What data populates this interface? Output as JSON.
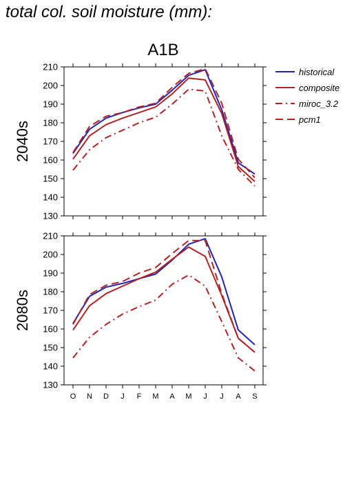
{
  "page": {
    "title": "total col. soil moisture (mm):"
  },
  "chart_data": {
    "type": "line",
    "scenario_title": "A1B",
    "categories": [
      "O",
      "N",
      "D",
      "J",
      "F",
      "M",
      "A",
      "M",
      "J",
      "J",
      "A",
      "S"
    ],
    "ylim": [
      130,
      210
    ],
    "yticks": [
      130,
      140,
      150,
      160,
      170,
      180,
      190,
      200,
      210
    ],
    "legend_position": "right",
    "legend": [
      {
        "name": "historical",
        "color": "#2222bb",
        "dash": "solid"
      },
      {
        "name": "composite",
        "color": "#b22222",
        "dash": "solid"
      },
      {
        "name": "miroc_3.2",
        "color": "#b22222",
        "dash": "dashdot"
      },
      {
        "name": "pcm1",
        "color": "#b22222",
        "dash": "dashed"
      }
    ],
    "panels": [
      {
        "ylabel": "2040s",
        "series": [
          {
            "name": "historical",
            "values": [
              163.5,
              176.5,
              182.5,
              185.5,
              188.0,
              190.0,
              197.5,
              205.5,
              208.5,
              187.0,
              158.5,
              152.5
            ]
          },
          {
            "name": "composite",
            "values": [
              160.5,
              173.0,
              179.0,
              182.5,
              185.5,
              188.5,
              195.5,
              204.0,
              203.0,
              185.0,
              156.5,
              148.5
            ]
          },
          {
            "name": "miroc_3.2",
            "values": [
              154.5,
              165.5,
              172.0,
              176.0,
              180.0,
              183.0,
              190.0,
              198.0,
              197.0,
              173.0,
              155.0,
              146.0
            ]
          },
          {
            "name": "pcm1",
            "values": [
              164.0,
              178.0,
              183.5,
              185.5,
              188.5,
              190.5,
              199.0,
              206.5,
              209.0,
              190.5,
              160.5,
              150.5
            ]
          }
        ]
      },
      {
        "ylabel": "2080s",
        "series": [
          {
            "name": "historical",
            "values": [
              163.0,
              177.5,
              182.5,
              184.5,
              187.0,
              189.5,
              197.0,
              205.5,
              208.5,
              188.0,
              159.5,
              151.5
            ]
          },
          {
            "name": "composite",
            "values": [
              159.5,
              172.5,
              179.0,
              183.0,
              187.0,
              190.5,
              197.5,
              204.0,
              199.0,
              178.0,
              155.0,
              147.5
            ]
          },
          {
            "name": "miroc_3.2",
            "values": [
              144.5,
              155.5,
              162.5,
              168.0,
              172.0,
              175.5,
              184.0,
              189.0,
              183.0,
              164.0,
              144.5,
              137.5
            ]
          },
          {
            "name": "pcm1",
            "values": [
              162.5,
              178.5,
              183.5,
              185.5,
              190.0,
              193.0,
              200.5,
              207.5,
              207.5,
              179.0,
              155.0,
              147.5
            ]
          }
        ]
      }
    ]
  }
}
